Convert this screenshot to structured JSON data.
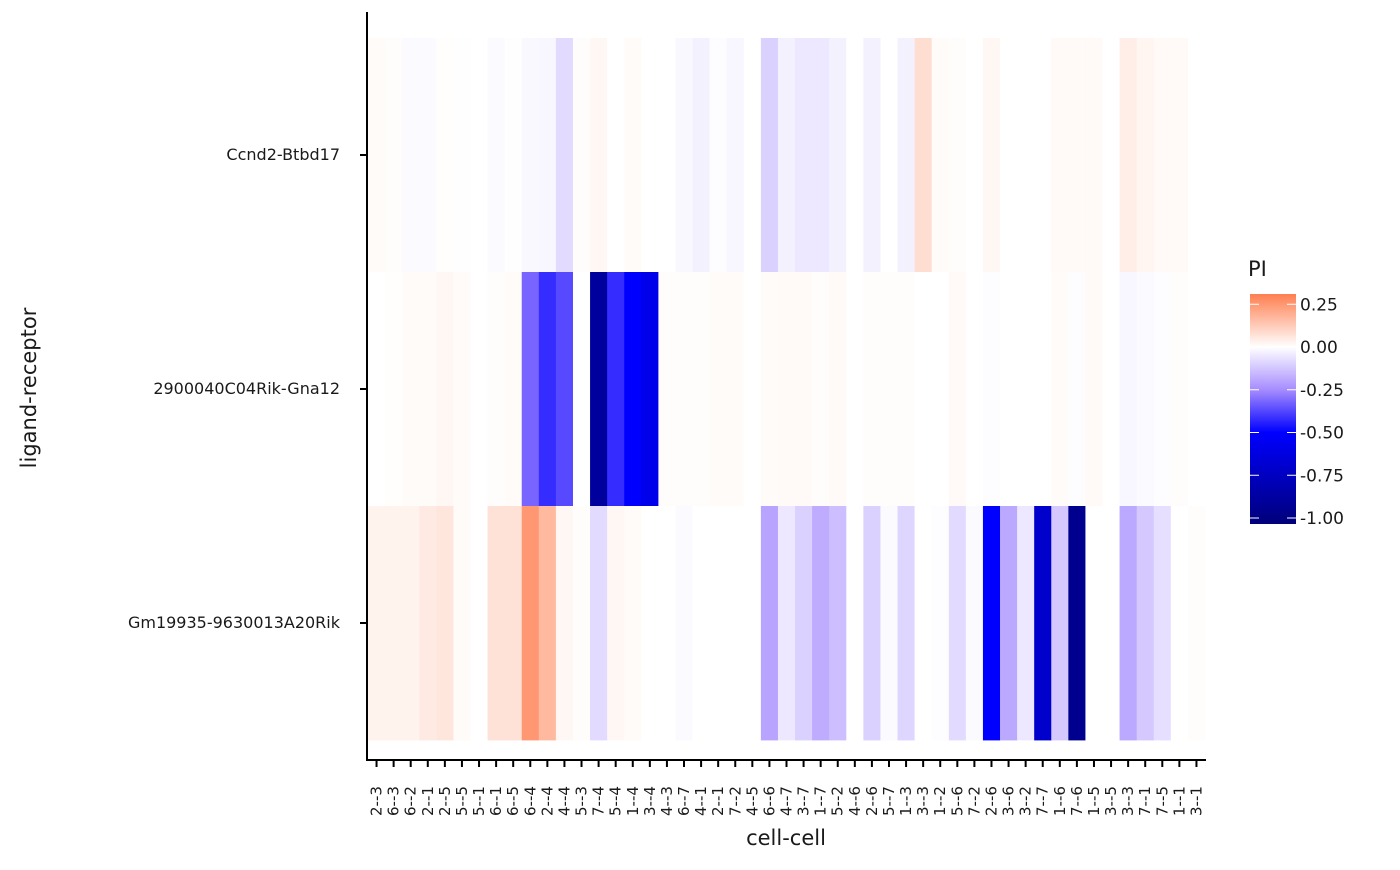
{
  "chart_data": {
    "type": "heatmap",
    "xlabel": "cell-cell",
    "ylabel": "ligand-receptor",
    "legend": {
      "title": "PI",
      "placement": "right",
      "ticks": [
        0.25,
        0.0,
        -0.25,
        -0.5,
        -0.75,
        -1.0
      ],
      "tick_labels": [
        "0.25",
        "0.00",
        "-0.25",
        "-0.50",
        "-0.75",
        "-1.00"
      ],
      "range": [
        -1.035,
        0.31
      ]
    },
    "color_stops": [
      {
        "value": -1.035,
        "color": "#00007A"
      },
      {
        "value": -0.5,
        "color": "#0000FF"
      },
      {
        "value": -0.25,
        "color": "#A68CFF"
      },
      {
        "value": 0.0,
        "color": "#FFFFFF"
      },
      {
        "value": 0.31,
        "color": "#FF7F50"
      }
    ],
    "rows": [
      "Ccnd2-Btbd17",
      "2900040C04Rik-Gna12",
      "Gm19935-9630013A20Rik"
    ],
    "columns": [
      "2--3",
      "6--3",
      "6--2",
      "2--1",
      "2--5",
      "5--5",
      "5--1",
      "6--1",
      "6--5",
      "6--4",
      "2--4",
      "4--4",
      "5--3",
      "7--4",
      "5--4",
      "1--4",
      "3--4",
      "4--3",
      "6--7",
      "4--1",
      "2--1",
      "7--2",
      "4--5",
      "6--6",
      "4--7",
      "3--7",
      "1--7",
      "5--2",
      "4--6",
      "2--6",
      "5--7",
      "1--3",
      "3--3",
      "1--2",
      "5--6",
      "7--2",
      "2--6",
      "3--6",
      "3--2",
      "7--7",
      "1--6",
      "7--6",
      "1--5",
      "3--5",
      "3--3",
      "7--1",
      "7--5",
      "1--1",
      "3--1"
    ],
    "values": [
      [
        0.01,
        0.005,
        -0.01,
        -0.01,
        0.003,
        0.002,
        0,
        -0.01,
        0.002,
        -0.015,
        -0.02,
        -0.08,
        0.005,
        0.02,
        0,
        0.01,
        0,
        0,
        -0.015,
        -0.03,
        -0.005,
        -0.02,
        0,
        -0.1,
        -0.03,
        -0.05,
        -0.05,
        -0.03,
        0,
        -0.03,
        0,
        -0.03,
        0.08,
        0.01,
        0.005,
        0,
        0.02,
        0,
        0,
        0,
        0.015,
        0.015,
        0.015,
        0,
        0.04,
        0.025,
        0.015,
        0.015,
        0
      ],
      [
        0,
        0.003,
        0.01,
        0.01,
        0.02,
        0.01,
        0,
        0.005,
        0.01,
        -0.32,
        -0.42,
        -0.37,
        0,
        -0.9,
        -0.42,
        -0.5,
        -0.58,
        0.005,
        0.005,
        0.005,
        0.01,
        0.01,
        0,
        0.01,
        0.015,
        0.015,
        0.005,
        0.015,
        0,
        0.005,
        0.005,
        0.005,
        0,
        0,
        0.015,
        0,
        -0.005,
        0,
        0,
        0,
        0.01,
        -0.005,
        0.015,
        0,
        -0.02,
        -0.01,
        -0.005,
        0.005,
        0
      ],
      [
        0.03,
        0.03,
        0.03,
        0.05,
        0.06,
        0.01,
        0,
        0.07,
        0.07,
        0.25,
        0.17,
        0.02,
        0.005,
        -0.08,
        0.02,
        0.01,
        0,
        0,
        -0.01,
        0,
        0,
        0,
        0,
        -0.2,
        -0.05,
        -0.1,
        -0.18,
        -0.14,
        0,
        -0.1,
        -0.01,
        -0.09,
        0,
        -0.005,
        -0.08,
        -0.01,
        -0.5,
        -0.19,
        -0.05,
        -0.7,
        -0.12,
        -0.95,
        0,
        0,
        -0.19,
        -0.12,
        -0.07,
        0,
        0.005
      ]
    ]
  }
}
